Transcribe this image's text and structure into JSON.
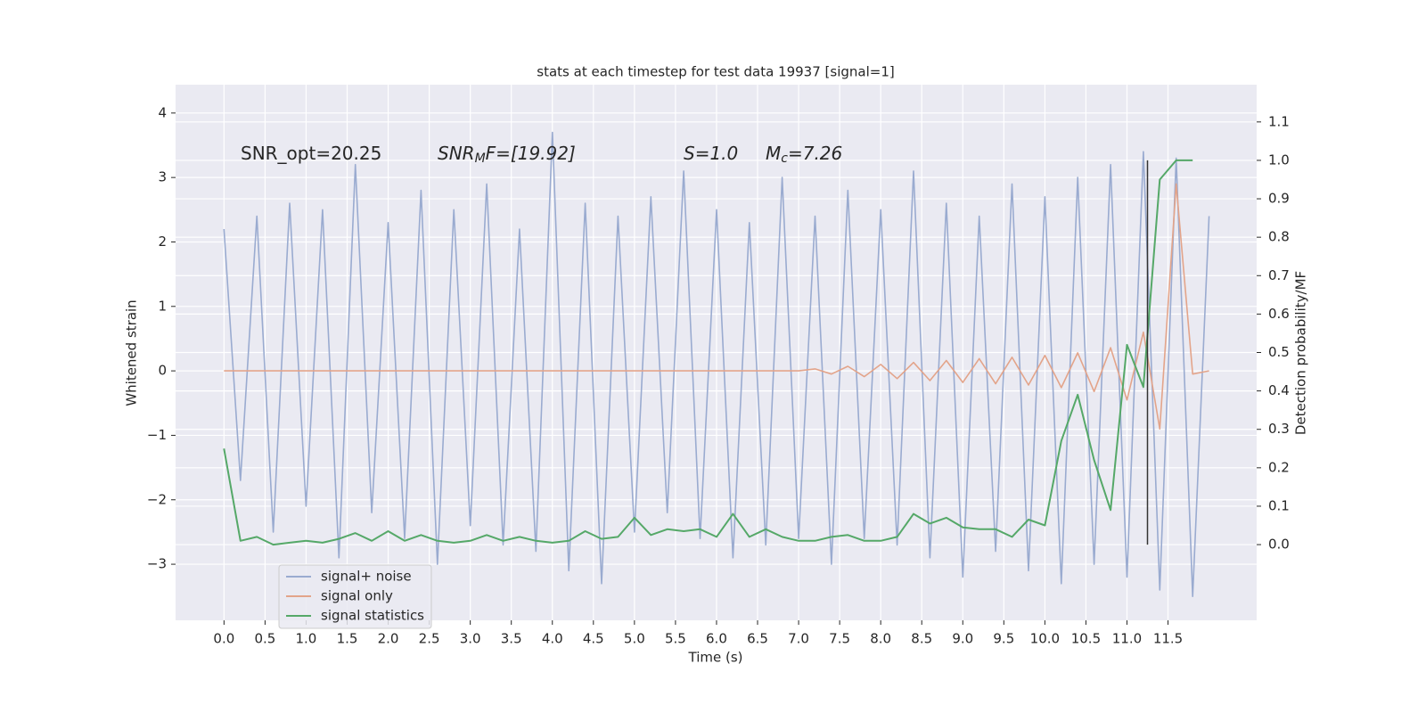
{
  "chart_data": {
    "type": "line",
    "title": "stats at each timestep for test data 19937 [signal=1]",
    "xlabel": "Time (s)",
    "ylabel": "Whitened strain",
    "y2label": "Detection probability/MF",
    "x": [
      0,
      0.2,
      0.4,
      0.6,
      0.8,
      1.0,
      1.2,
      1.4,
      1.6,
      1.8,
      2.0,
      2.2,
      2.4,
      2.6,
      2.8,
      3.0,
      3.2,
      3.4,
      3.6,
      3.8,
      4.0,
      4.2,
      4.4,
      4.6,
      4.8,
      5.0,
      5.2,
      5.4,
      5.6,
      5.8,
      6.0,
      6.2,
      6.4,
      6.6,
      6.8,
      7.0,
      7.2,
      7.4,
      7.6,
      7.8,
      8.0,
      8.2,
      8.4,
      8.6,
      8.8,
      9.0,
      9.2,
      9.4,
      9.6,
      9.8,
      10.0,
      10.2,
      10.4,
      10.6,
      10.8,
      11.0,
      11.2,
      11.4,
      11.6,
      11.8,
      12.0
    ],
    "series": [
      {
        "name": "signal+ noise",
        "color": "#9aabd0",
        "values": [
          2.2,
          -1.7,
          2.4,
          -2.5,
          2.6,
          -2.1,
          2.5,
          -2.9,
          3.2,
          -2.2,
          2.3,
          -2.6,
          2.8,
          -3.0,
          2.5,
          -2.4,
          2.9,
          -2.7,
          2.2,
          -2.8,
          3.7,
          -3.1,
          2.6,
          -3.3,
          2.4,
          -2.5,
          2.7,
          -2.2,
          3.1,
          -2.6,
          2.5,
          -2.9,
          2.3,
          -2.7,
          3.0,
          -2.6,
          2.4,
          -3.0,
          2.8,
          -2.6,
          2.5,
          -2.7,
          3.1,
          -2.9,
          2.6,
          -3.2,
          2.4,
          -2.8,
          2.9,
          -3.1,
          2.7,
          -3.3,
          3.0,
          -3.0,
          3.2,
          -3.2,
          3.4,
          -3.4,
          3.3,
          -3.5,
          2.4
        ]
      },
      {
        "name": "signal only",
        "color": "#e3a48a",
        "values": [
          0,
          0,
          0,
          0,
          0,
          0,
          0,
          0,
          0,
          0,
          0,
          0,
          0,
          0,
          0,
          0,
          0,
          0,
          0,
          0,
          0,
          0,
          0,
          0,
          0,
          0,
          0,
          0,
          0,
          0,
          0,
          0,
          0,
          0,
          0,
          0,
          0.03,
          -0.05,
          0.07,
          -0.09,
          0.1,
          -0.12,
          0.13,
          -0.15,
          0.16,
          -0.18,
          0.19,
          -0.2,
          0.21,
          -0.22,
          0.24,
          -0.26,
          0.28,
          -0.32,
          0.36,
          -0.45,
          0.6,
          -0.9,
          2.9,
          -0.05,
          0
        ]
      },
      {
        "name": "signal statistics",
        "color": "#55a868",
        "axis": "y2",
        "values": [
          0.25,
          0.01,
          0.02,
          0.0,
          0.005,
          0.01,
          0.005,
          0.015,
          0.03,
          0.01,
          0.035,
          0.01,
          0.025,
          0.01,
          0.005,
          0.01,
          0.025,
          0.01,
          0.02,
          0.01,
          0.005,
          0.01,
          0.035,
          0.015,
          0.02,
          0.07,
          0.025,
          0.04,
          0.035,
          0.04,
          0.02,
          0.08,
          0.02,
          0.04,
          0.02,
          0.01,
          0.01,
          0.02,
          0.025,
          0.01,
          0.01,
          0.02,
          0.08,
          0.055,
          0.07,
          0.045,
          0.04,
          0.04,
          0.02,
          0.065,
          0.05,
          0.27,
          0.39,
          0.22,
          0.09,
          0.52,
          0.41,
          0.95,
          1.0,
          1.0,
          null
        ]
      }
    ],
    "vline": {
      "x": 11.25,
      "y2": [
        0,
        1
      ],
      "color": "#333333"
    },
    "annotations": [
      {
        "text": "SNR_opt=20.25",
        "italic": false
      },
      {
        "text": "SNR",
        "sub": "M",
        "tail": "F=[19.92]",
        "italic": true
      },
      {
        "text": "S",
        "tail": "=1.0",
        "italic": true
      },
      {
        "text": "M",
        "sub": "c",
        "tail": "=7.26",
        "italic": true
      }
    ],
    "xlim": [
      -0.59,
      12.58
    ],
    "ylim": [
      -3.87,
      4.44
    ],
    "y2lim": [
      -0.197,
      1.197
    ],
    "xticks": [
      {
        "value": 0,
        "label": "0.0"
      },
      0.5,
      {
        "value": 1,
        "label": "1.0"
      },
      1.5,
      {
        "value": 2,
        "label": "2.0"
      },
      2.5,
      {
        "value": 3,
        "label": "3.0"
      },
      3.5,
      {
        "value": 4,
        "label": "4.0"
      },
      4.5,
      {
        "value": 5,
        "label": "5.0"
      },
      5.5,
      {
        "value": 6,
        "label": "6.0"
      },
      6.5,
      {
        "value": 7,
        "label": "7.0"
      },
      7.5,
      {
        "value": 8,
        "label": "8.0"
      },
      8.5,
      {
        "value": 9,
        "label": "9.0"
      },
      9.5,
      {
        "value": 10,
        "label": "10.0"
      },
      10.5,
      {
        "value": 11,
        "label": "11.0"
      },
      11.5
    ],
    "yticks": [
      {
        "value": -3,
        "label": "−3"
      },
      {
        "value": -2,
        "label": "−2"
      },
      {
        "value": -1,
        "label": "−1"
      },
      0,
      1,
      2,
      3,
      4
    ],
    "y2ticks": [
      {
        "value": 0,
        "label": "0.0"
      },
      0.1,
      0.2,
      0.3,
      0.4,
      0.5,
      0.6,
      0.7,
      0.8,
      0.9,
      {
        "value": 1,
        "label": "1.0"
      },
      1.1
    ],
    "grid": true,
    "legend": "lower left"
  }
}
